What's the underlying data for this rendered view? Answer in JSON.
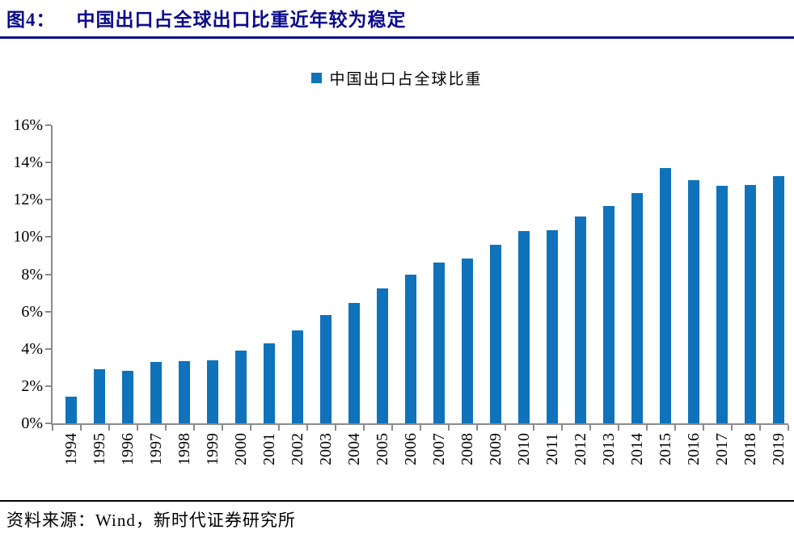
{
  "header": {
    "figure_label": "图4：",
    "title": "中国出口占全球出口比重近年较为稳定"
  },
  "legend": {
    "label": "中国出口占全球比重"
  },
  "footer": {
    "source": "资料来源：Wind，新时代证券研究所"
  },
  "colors": {
    "bar": "#0F72BA",
    "title_navy": "#0A0A8C",
    "axis_gray": "#8a8a8a",
    "footer_rule": "#000000"
  },
  "chart_data": {
    "type": "bar",
    "title": "中国出口占全球出口比重近年较为稳定",
    "legend_entries": [
      "中国出口占全球比重"
    ],
    "legend_position": "top-center",
    "grid": false,
    "xlabel": "",
    "ylabel": "",
    "ylim": [
      0,
      16
    ],
    "ytick_step": 2,
    "ytick_labels": [
      "0%",
      "2%",
      "4%",
      "6%",
      "8%",
      "10%",
      "12%",
      "14%",
      "16%"
    ],
    "categories": [
      "1994",
      "1995",
      "1996",
      "1997",
      "1998",
      "1999",
      "2000",
      "2001",
      "2002",
      "2003",
      "2004",
      "2005",
      "2006",
      "2007",
      "2008",
      "2009",
      "2010",
      "2011",
      "2012",
      "2013",
      "2014",
      "2015",
      "2016",
      "2017",
      "2018",
      "2019"
    ],
    "values": [
      1.45,
      2.9,
      2.8,
      3.3,
      3.35,
      3.4,
      3.9,
      4.3,
      5.0,
      5.8,
      6.45,
      7.25,
      8.0,
      8.65,
      8.85,
      9.6,
      10.3,
      10.35,
      11.1,
      11.65,
      12.35,
      13.7,
      13.05,
      12.75,
      12.8,
      13.25
    ],
    "bar_color": "#0F72BA"
  }
}
